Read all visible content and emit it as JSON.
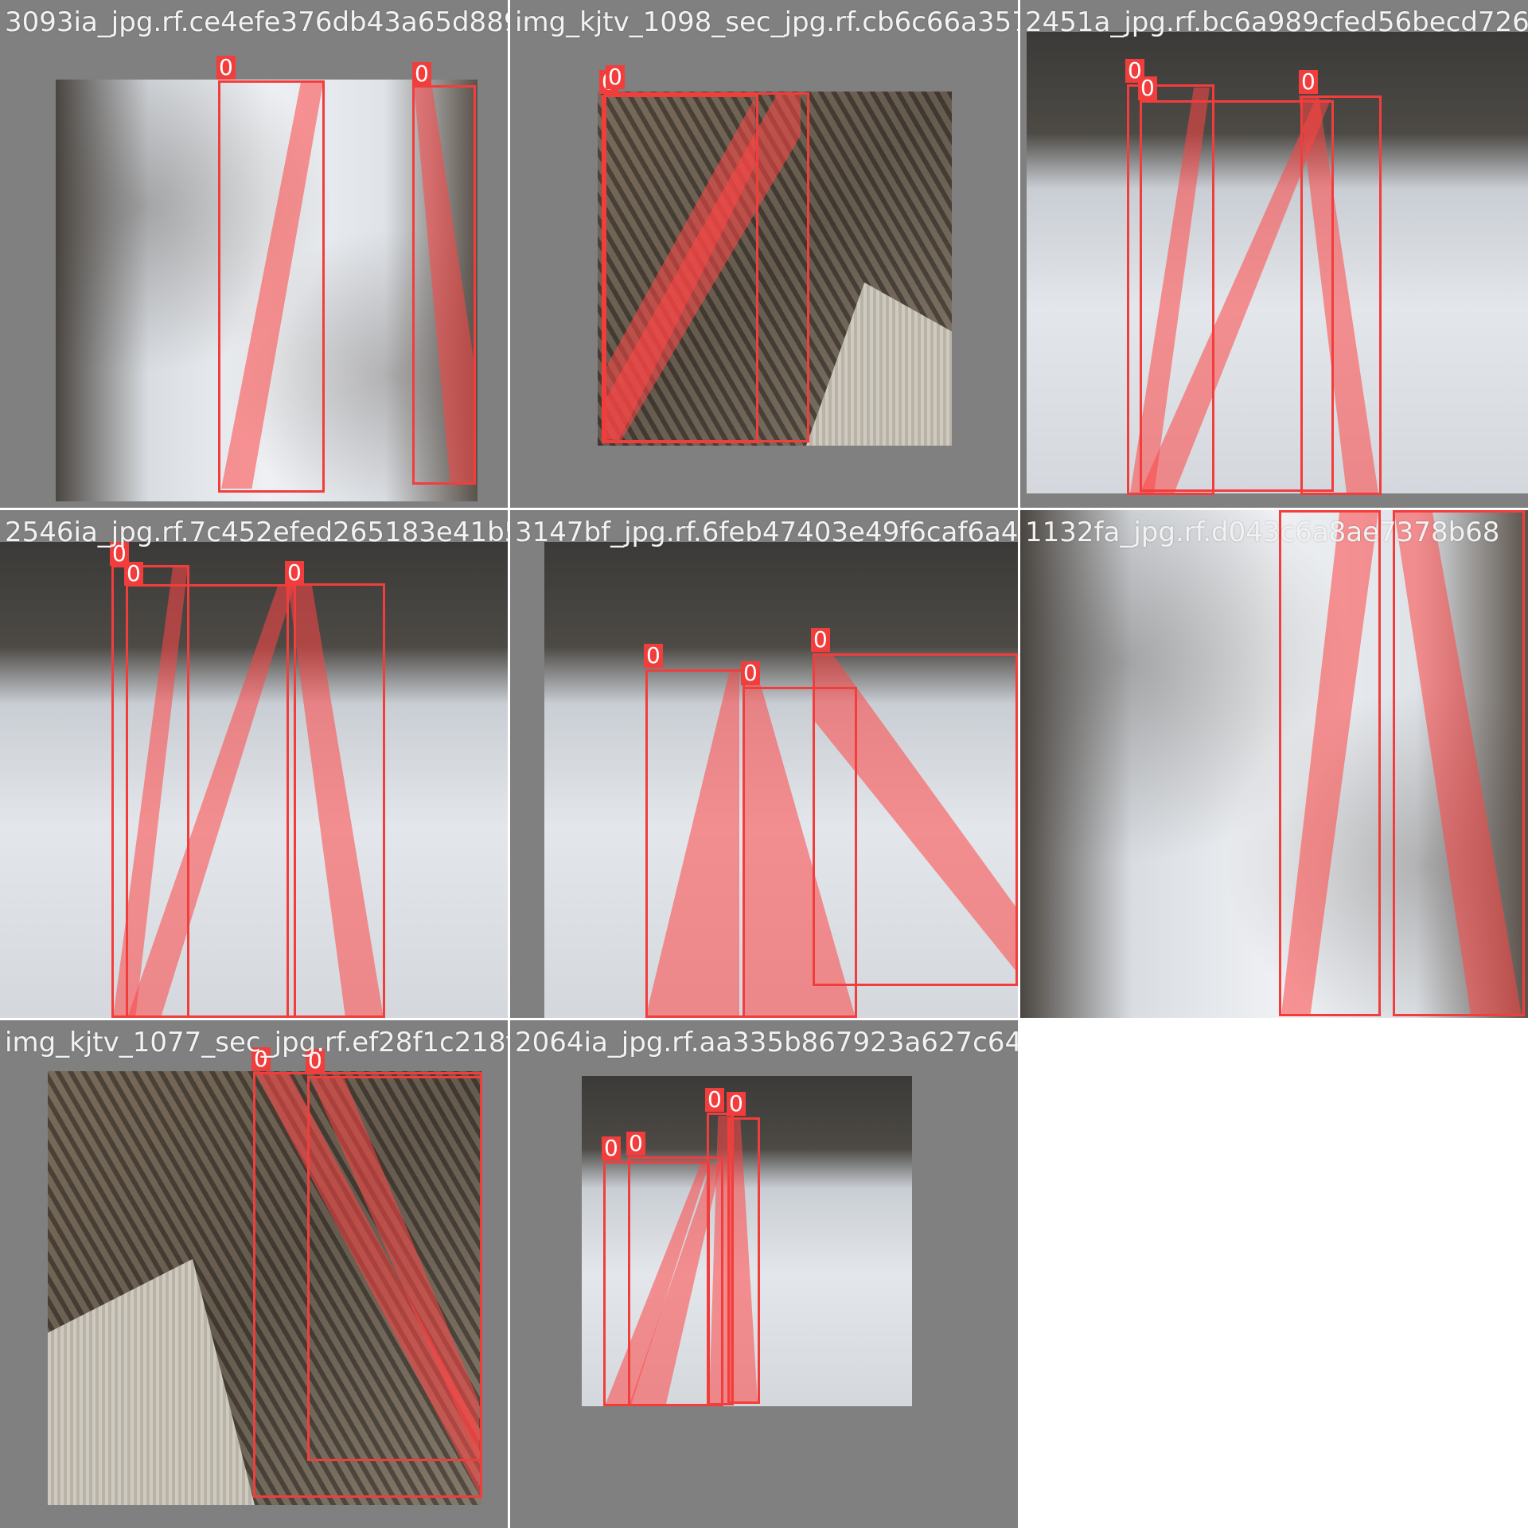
{
  "class_label": "0",
  "colors": {
    "box": "#f23d3d",
    "mask": "rgba(255,70,70,0.55)",
    "cell_bg": "#808080",
    "page_bg": "#ffffff"
  },
  "tiles": [
    {
      "filename": "3093ia_jpg.rf.ce4efe376db43a65d889cd13618",
      "detections": 2
    },
    {
      "filename": "img_kjtv_1098_sec_jpg.rf.cb6c66a3572f572a",
      "detections": 2
    },
    {
      "filename": "2451a_jpg.rf.bc6a989cfed56becd726",
      "detections": 3
    },
    {
      "filename": "2546ia_jpg.rf.7c452efed265183e41b563113f",
      "detections": 3
    },
    {
      "filename": "3147bf_jpg.rf.6feb47403e49f6caf6a44a1d2fa",
      "detections": 3
    },
    {
      "filename": "1132fa_jpg.rf.d043c6a8ae7378b68",
      "detections": 2
    },
    {
      "filename": "img_kjtv_1077_sec_jpg.rf.ef28f1c218f2097",
      "detections": 2
    },
    {
      "filename": "2064ia_jpg.rf.aa335b867923a627c640fc8ce0",
      "detections": 4
    }
  ]
}
